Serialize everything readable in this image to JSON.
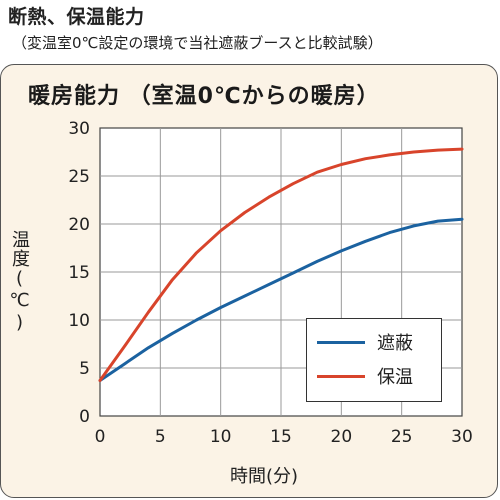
{
  "header": {
    "title": "断熱、保温能力",
    "subtitle": "（変温室0℃設定の環境で当社遮蔽ブースと比較試験）"
  },
  "chart_data": {
    "type": "line",
    "title": "暖房能力 （室温0℃からの暖房）",
    "xlabel": "時間(分)",
    "ylabel": "温度(℃)",
    "xlim": [
      0,
      30
    ],
    "ylim": [
      0,
      30
    ],
    "xticks": [
      0,
      5,
      10,
      15,
      20,
      25,
      30
    ],
    "yticks": [
      0,
      5,
      10,
      15,
      20,
      25,
      30
    ],
    "grid": true,
    "legend_position": "bottom-right",
    "x": [
      0,
      2,
      4,
      6,
      8,
      10,
      12,
      14,
      16,
      18,
      20,
      22,
      24,
      26,
      28,
      30
    ],
    "series": [
      {
        "name": "遮蔽",
        "color": "#1b62a0",
        "values": [
          3.7,
          5.4,
          7.1,
          8.6,
          10.0,
          11.3,
          12.5,
          13.7,
          14.9,
          16.1,
          17.2,
          18.2,
          19.1,
          19.8,
          20.3,
          20.5
        ]
      },
      {
        "name": "保温",
        "color": "#d8442b",
        "values": [
          3.7,
          7.2,
          10.8,
          14.2,
          17.0,
          19.3,
          21.2,
          22.8,
          24.2,
          25.4,
          26.2,
          26.8,
          27.2,
          27.5,
          27.7,
          27.8
        ]
      }
    ]
  }
}
